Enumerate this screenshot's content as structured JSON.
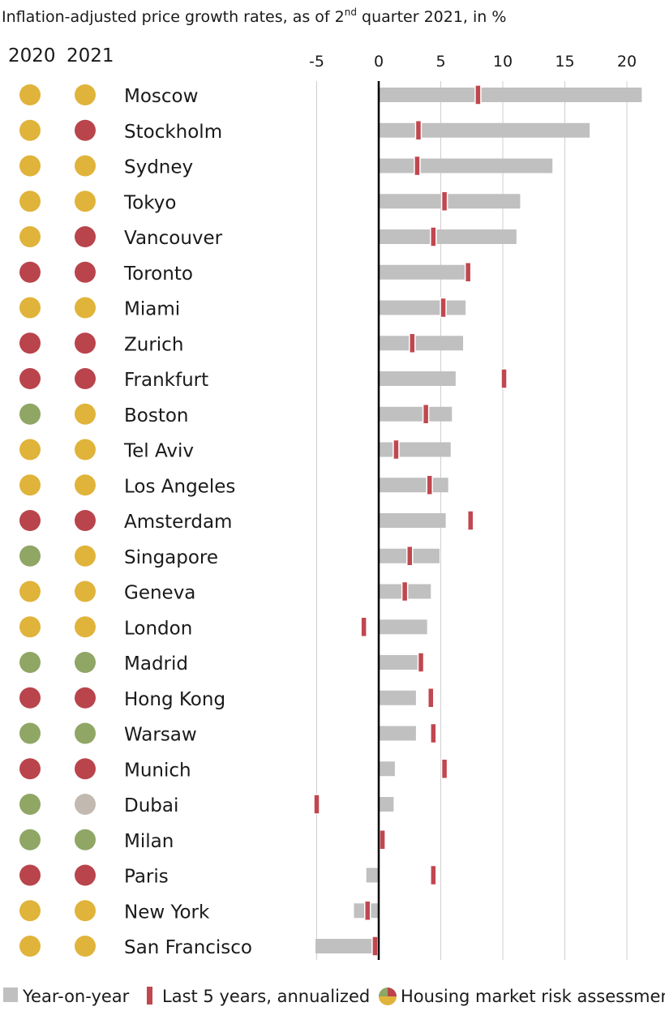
{
  "title_prefix": "Inflation-adjusted price growth rates, as of 2",
  "title_sup": "nd",
  "title_suffix": " quarter 2021, in %",
  "column_headers": [
    "2020",
    "2021"
  ],
  "legend": {
    "yoy": "Year-on-year",
    "five_year": "Last 5 years, annualized",
    "risk": "Housing market risk assessment"
  },
  "colors": {
    "bar": "#c0c0c0",
    "marker": "#c0474f",
    "axis": "#000000",
    "grid": "#cfcfcf",
    "risk": {
      "bubble risk": "#b9444c",
      "overvalued": "#e0b33a",
      "fair-valued": "#8fa665",
      "undervalued": "#c2b9b1"
    }
  },
  "chart_data": {
    "type": "bar",
    "orientation": "horizontal",
    "xlim": [
      -5,
      21
    ],
    "xticks": [
      -5,
      0,
      5,
      10,
      15,
      20
    ],
    "grid": true,
    "legend_position": "bottom",
    "categories": [
      "Moscow",
      "Stockholm",
      "Sydney",
      "Tokyo",
      "Vancouver",
      "Toronto",
      "Miami",
      "Zurich",
      "Frankfurt",
      "Boston",
      "Tel Aviv",
      "Los Angeles",
      "Amsterdam",
      "Singapore",
      "Geneva",
      "London",
      "Madrid",
      "Hong Kong",
      "Warsaw",
      "Munich",
      "Dubai",
      "Milan",
      "Paris",
      "New York",
      "San Francisco"
    ],
    "series": [
      {
        "name": "Year-on-year",
        "values": [
          21.2,
          17.0,
          14.0,
          11.4,
          11.1,
          7.4,
          7.0,
          6.8,
          6.2,
          5.9,
          5.8,
          5.6,
          5.4,
          4.9,
          4.2,
          3.9,
          3.5,
          3.0,
          3.0,
          1.3,
          1.2,
          0.5,
          -1.0,
          -2.0,
          -5.1
        ]
      },
      {
        "name": "Last 5 years, annualized",
        "values": [
          8.0,
          3.2,
          3.1,
          5.3,
          4.4,
          7.2,
          5.2,
          2.7,
          10.1,
          3.8,
          1.4,
          4.1,
          7.4,
          2.5,
          2.1,
          -1.2,
          3.4,
          4.2,
          4.4,
          5.3,
          -5.0,
          0.3,
          4.4,
          -0.9,
          -0.3
        ]
      }
    ],
    "risk_assessment": {
      "2020": [
        "overvalued",
        "overvalued",
        "overvalued",
        "overvalued",
        "overvalued",
        "bubble risk",
        "overvalued",
        "bubble risk",
        "bubble risk",
        "fair-valued",
        "overvalued",
        "overvalued",
        "bubble risk",
        "fair-valued",
        "overvalued",
        "overvalued",
        "fair-valued",
        "bubble risk",
        "fair-valued",
        "bubble risk",
        "fair-valued",
        "fair-valued",
        "bubble risk",
        "overvalued",
        "overvalued"
      ],
      "2021": [
        "overvalued",
        "bubble risk",
        "overvalued",
        "overvalued",
        "bubble risk",
        "bubble risk",
        "overvalued",
        "bubble risk",
        "bubble risk",
        "overvalued",
        "overvalued",
        "overvalued",
        "bubble risk",
        "overvalued",
        "overvalued",
        "overvalued",
        "fair-valued",
        "bubble risk",
        "fair-valued",
        "bubble risk",
        "undervalued",
        "fair-valued",
        "bubble risk",
        "overvalued",
        "overvalued"
      ]
    }
  }
}
